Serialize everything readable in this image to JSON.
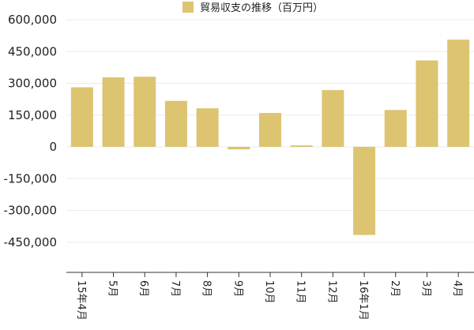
{
  "chart_data": {
    "type": "bar",
    "legend": {
      "label": "貿易収支の推移（百万円）",
      "position": "top-center"
    },
    "categories": [
      "15年4月",
      "5月",
      "6月",
      "7月",
      "8月",
      "9月",
      "10月",
      "11月",
      "12月",
      "16年1月",
      "2月",
      "3月",
      "4月"
    ],
    "series": [
      {
        "name": "貿易収支の推移（百万円）",
        "color": "#dcc471",
        "values": [
          281000,
          328000,
          331000,
          217000,
          182000,
          -12000,
          160000,
          7000,
          268000,
          -416000,
          174000,
          408000,
          506000
        ]
      }
    ],
    "yticks": [
      600000,
      450000,
      300000,
      150000,
      0,
      -150000,
      -300000,
      -450000
    ],
    "ytick_labels": [
      "600,000",
      "450,000",
      "300,000",
      "150,000",
      "0",
      "-150,000",
      "-300,000",
      "-450,000"
    ],
    "ylim": [
      -600000,
      600000
    ],
    "grid": true,
    "colors": {
      "grid": "#ebebeb",
      "axis": "#333333"
    }
  }
}
